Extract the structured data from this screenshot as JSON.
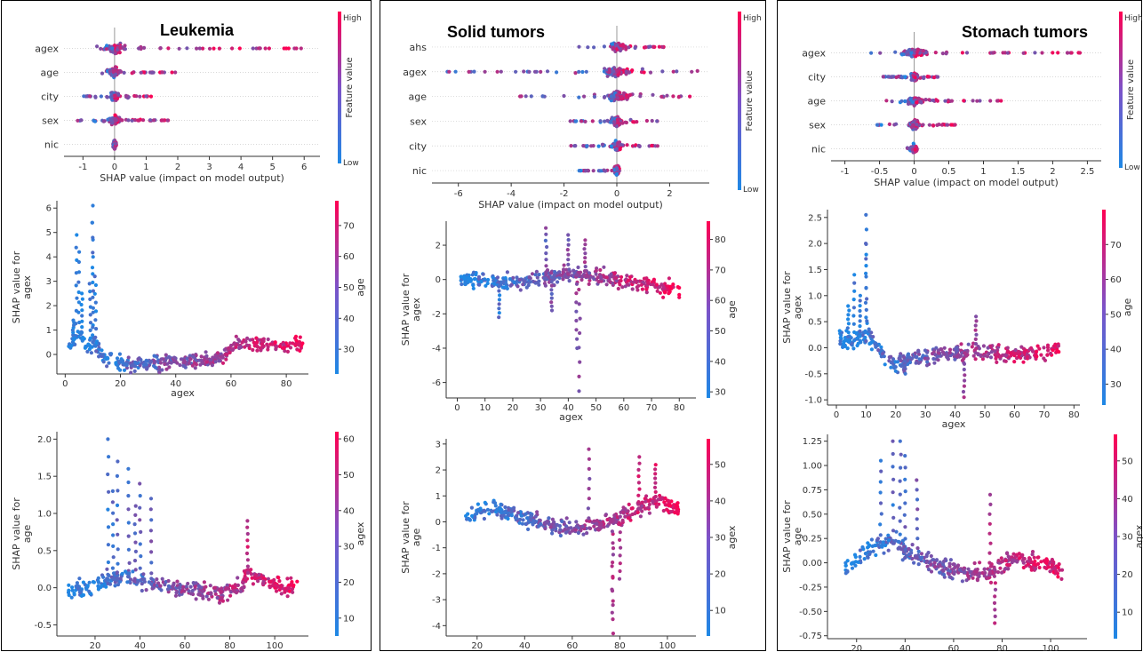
{
  "panels": [
    {
      "title": "Leukemia",
      "summary": {
        "type": "scatter",
        "features": [
          "agex",
          "age",
          "city",
          "sex",
          "nic"
        ],
        "xticks": [
          -1,
          0,
          1,
          2,
          3,
          4,
          5,
          6
        ],
        "xlim": [
          -1.6,
          6.5
        ],
        "xlabel": "SHAP value (impact on model output)",
        "colorbar": {
          "label": "Feature value",
          "high": "High",
          "low": "Low"
        },
        "ranges": [
          [
            -0.6,
            6.2
          ],
          [
            -0.5,
            2.0
          ],
          [
            -1.0,
            1.3
          ],
          [
            -1.2,
            1.7
          ],
          [
            -0.05,
            0.05
          ]
        ]
      },
      "dep1": {
        "type": "scatter",
        "ylabel": "SHAP value for\nagex",
        "xlabel": "agex",
        "xlim": [
          -3,
          88
        ],
        "ylim": [
          -0.8,
          6.3
        ],
        "xticks": [
          0,
          20,
          40,
          60,
          80
        ],
        "yticks": [
          0,
          1,
          2,
          3,
          4,
          5,
          6
        ],
        "cbar_label": "age",
        "cbar_ticks": [
          30,
          40,
          50,
          60,
          70
        ],
        "cbar_range": [
          22,
          78
        ],
        "trend": [
          [
            1,
            0.3
          ],
          [
            5,
            0.9
          ],
          [
            8,
            0.2
          ],
          [
            10,
            0.5
          ],
          [
            15,
            -0.3
          ],
          [
            25,
            -0.4
          ],
          [
            40,
            -0.3
          ],
          [
            55,
            -0.2
          ],
          [
            60,
            0.2
          ],
          [
            62,
            0.5
          ],
          [
            70,
            0.4
          ],
          [
            80,
            0.4
          ],
          [
            86,
            0.4
          ]
        ],
        "peaks": [
          [
            4,
            4.9
          ],
          [
            5,
            4.2
          ],
          [
            10,
            6.1
          ],
          [
            10,
            5.4
          ],
          [
            11,
            3.2
          ],
          [
            3,
            1.4
          ],
          [
            6,
            2.5
          ],
          [
            9,
            2.9
          ]
        ]
      },
      "dep2": {
        "type": "scatter",
        "ylabel": "SHAP value for\nage",
        "xlabel": "age",
        "xlim": [
          3,
          115
        ],
        "ylim": [
          -0.65,
          2.1
        ],
        "xticks": [
          20,
          40,
          60,
          80,
          100
        ],
        "yticks": [
          -0.5,
          0.0,
          0.5,
          1.0,
          1.5,
          2.0
        ],
        "cbar_label": "agex",
        "cbar_ticks": [
          10,
          20,
          30,
          40,
          50,
          60
        ],
        "cbar_range": [
          5,
          62
        ],
        "trend": [
          [
            8,
            -0.05
          ],
          [
            15,
            0.0
          ],
          [
            25,
            0.1
          ],
          [
            35,
            0.15
          ],
          [
            45,
            0.05
          ],
          [
            55,
            0.0
          ],
          [
            65,
            -0.05
          ],
          [
            75,
            -0.1
          ],
          [
            85,
            0.0
          ],
          [
            88,
            0.2
          ],
          [
            95,
            0.1
          ],
          [
            105,
            0.0
          ],
          [
            110,
            0.0
          ]
        ],
        "peaks": [
          [
            26,
            2.0
          ],
          [
            30,
            1.7
          ],
          [
            35,
            1.6
          ],
          [
            40,
            1.4
          ],
          [
            45,
            1.2
          ],
          [
            28,
            1.3
          ],
          [
            38,
            1.1
          ],
          [
            88,
            0.9
          ]
        ]
      }
    },
    {
      "title": "Solid tumors",
      "summary": {
        "type": "scatter",
        "features": [
          "ahs",
          "agex",
          "age",
          "sex",
          "city",
          "nic"
        ],
        "xticks": [
          -6,
          -4,
          -2,
          0,
          2
        ],
        "xlim": [
          -7,
          3.5
        ],
        "xlabel": "SHAP value (impact on model output)",
        "colorbar": {
          "label": "Feature value",
          "high": "High",
          "low": "Low"
        },
        "ranges": [
          [
            -1.8,
            1.8
          ],
          [
            -6.5,
            3.1
          ],
          [
            -4.5,
            2.9
          ],
          [
            -1.8,
            1.6
          ],
          [
            -1.8,
            1.6
          ],
          [
            -1.5,
            0.3
          ]
        ]
      },
      "dep1": {
        "type": "scatter",
        "ylabel": "SHAP value for\nagex",
        "xlabel": "agex",
        "xlim": [
          -4,
          86
        ],
        "ylim": [
          -6.9,
          3.4
        ],
        "xticks": [
          0,
          10,
          20,
          30,
          40,
          50,
          60,
          70,
          80
        ],
        "yticks": [
          -6,
          -4,
          -2,
          0,
          2
        ],
        "cbar_label": "age",
        "cbar_ticks": [
          30,
          40,
          50,
          60,
          70,
          80
        ],
        "cbar_range": [
          28,
          86
        ],
        "trend": [
          [
            1,
            0.1
          ],
          [
            10,
            -0.1
          ],
          [
            20,
            -0.2
          ],
          [
            30,
            0.0
          ],
          [
            40,
            0.3
          ],
          [
            50,
            0.2
          ],
          [
            60,
            -0.1
          ],
          [
            70,
            -0.3
          ],
          [
            80,
            -0.6
          ]
        ],
        "peaks": [
          [
            44,
            -6.5
          ],
          [
            43,
            -4.0
          ],
          [
            32,
            3.0
          ],
          [
            40,
            2.6
          ],
          [
            46,
            2.3
          ],
          [
            15,
            -2.2
          ],
          [
            34,
            -1.8
          ]
        ]
      },
      "dep2": {
        "type": "scatter",
        "ylabel": "SHAP value for\nage",
        "xlabel": "age",
        "xlim": [
          7,
          112
        ],
        "ylim": [
          -4.4,
          3.2
        ],
        "xticks": [
          20,
          40,
          60,
          80,
          100
        ],
        "yticks": [
          -4,
          -3,
          -2,
          -1,
          0,
          1,
          2,
          3
        ],
        "cbar_label": "agex",
        "cbar_ticks": [
          10,
          20,
          30,
          40,
          50
        ],
        "cbar_range": [
          3,
          57
        ],
        "trend": [
          [
            15,
            0.2
          ],
          [
            25,
            0.5
          ],
          [
            35,
            0.3
          ],
          [
            45,
            0.0
          ],
          [
            55,
            -0.2
          ],
          [
            65,
            -0.3
          ],
          [
            75,
            0.0
          ],
          [
            85,
            0.4
          ],
          [
            95,
            0.8
          ],
          [
            105,
            0.5
          ]
        ],
        "peaks": [
          [
            77,
            -4.3
          ],
          [
            77,
            -3.5
          ],
          [
            67,
            2.8
          ],
          [
            88,
            2.5
          ],
          [
            95,
            2.2
          ],
          [
            80,
            -2.2
          ]
        ]
      }
    },
    {
      "title": "Stomach tumors",
      "summary": {
        "type": "scatter",
        "features": [
          "agex",
          "city",
          "age",
          "sex",
          "nic"
        ],
        "xticks": [
          -1.0,
          -0.5,
          0.0,
          0.5,
          1.0,
          1.5,
          2.0,
          2.5
        ],
        "xlim": [
          -1.2,
          2.7
        ],
        "xlabel": "SHAP value (impact on model output)",
        "colorbar": {
          "label": "Feature value",
          "high": "High",
          "low": "Low"
        },
        "ranges": [
          [
            -0.7,
            2.5
          ],
          [
            -0.45,
            0.35
          ],
          [
            -0.6,
            1.3
          ],
          [
            -0.55,
            0.6
          ],
          [
            -0.1,
            0.05
          ]
        ]
      },
      "dep1": {
        "type": "scatter",
        "ylabel": "SHAP value for\nagex",
        "xlabel": "agex",
        "xlim": [
          -3,
          82
        ],
        "ylim": [
          -1.1,
          2.65
        ],
        "xticks": [
          0,
          10,
          20,
          30,
          40,
          50,
          60,
          70,
          80
        ],
        "yticks": [
          -1.0,
          -0.5,
          0.0,
          0.5,
          1.0,
          1.5,
          2.0,
          2.5
        ],
        "cbar_label": "age",
        "cbar_ticks": [
          30,
          40,
          50,
          60,
          70
        ],
        "cbar_range": [
          24,
          80
        ],
        "trend": [
          [
            1,
            0.2
          ],
          [
            5,
            0.1
          ],
          [
            10,
            0.3
          ],
          [
            15,
            -0.1
          ],
          [
            20,
            -0.3
          ],
          [
            30,
            -0.15
          ],
          [
            40,
            -0.1
          ],
          [
            50,
            -0.1
          ],
          [
            60,
            -0.15
          ],
          [
            70,
            -0.1
          ],
          [
            75,
            0.0
          ]
        ],
        "peaks": [
          [
            10,
            2.55
          ],
          [
            10,
            2.0
          ],
          [
            6,
            1.4
          ],
          [
            8,
            1.0
          ],
          [
            4,
            0.8
          ],
          [
            43,
            -0.95
          ],
          [
            47,
            0.6
          ],
          [
            23,
            -0.5
          ]
        ]
      },
      "dep2": {
        "type": "scatter",
        "ylabel": "SHAP value for\nage",
        "xlabel": "age",
        "xlim": [
          8,
          115
        ],
        "ylim": [
          -0.78,
          1.32
        ],
        "xticks": [
          20,
          40,
          60,
          80,
          100
        ],
        "yticks": [
          -0.75,
          -0.5,
          -0.25,
          0.0,
          0.25,
          0.5,
          0.75,
          1.0,
          1.25
        ],
        "cbar_label": "agex",
        "cbar_ticks": [
          10,
          20,
          30,
          40,
          50
        ],
        "cbar_range": [
          3,
          57
        ],
        "trend": [
          [
            15,
            -0.05
          ],
          [
            25,
            0.15
          ],
          [
            35,
            0.2
          ],
          [
            45,
            0.05
          ],
          [
            55,
            -0.05
          ],
          [
            65,
            -0.1
          ],
          [
            75,
            -0.1
          ],
          [
            85,
            0.05
          ],
          [
            95,
            0.0
          ],
          [
            105,
            -0.1
          ]
        ],
        "peaks": [
          [
            35,
            1.25
          ],
          [
            38,
            1.25
          ],
          [
            30,
            1.05
          ],
          [
            40,
            1.1
          ],
          [
            45,
            0.85
          ],
          [
            75,
            0.7
          ],
          [
            77,
            -0.62
          ]
        ]
      }
    }
  ]
}
